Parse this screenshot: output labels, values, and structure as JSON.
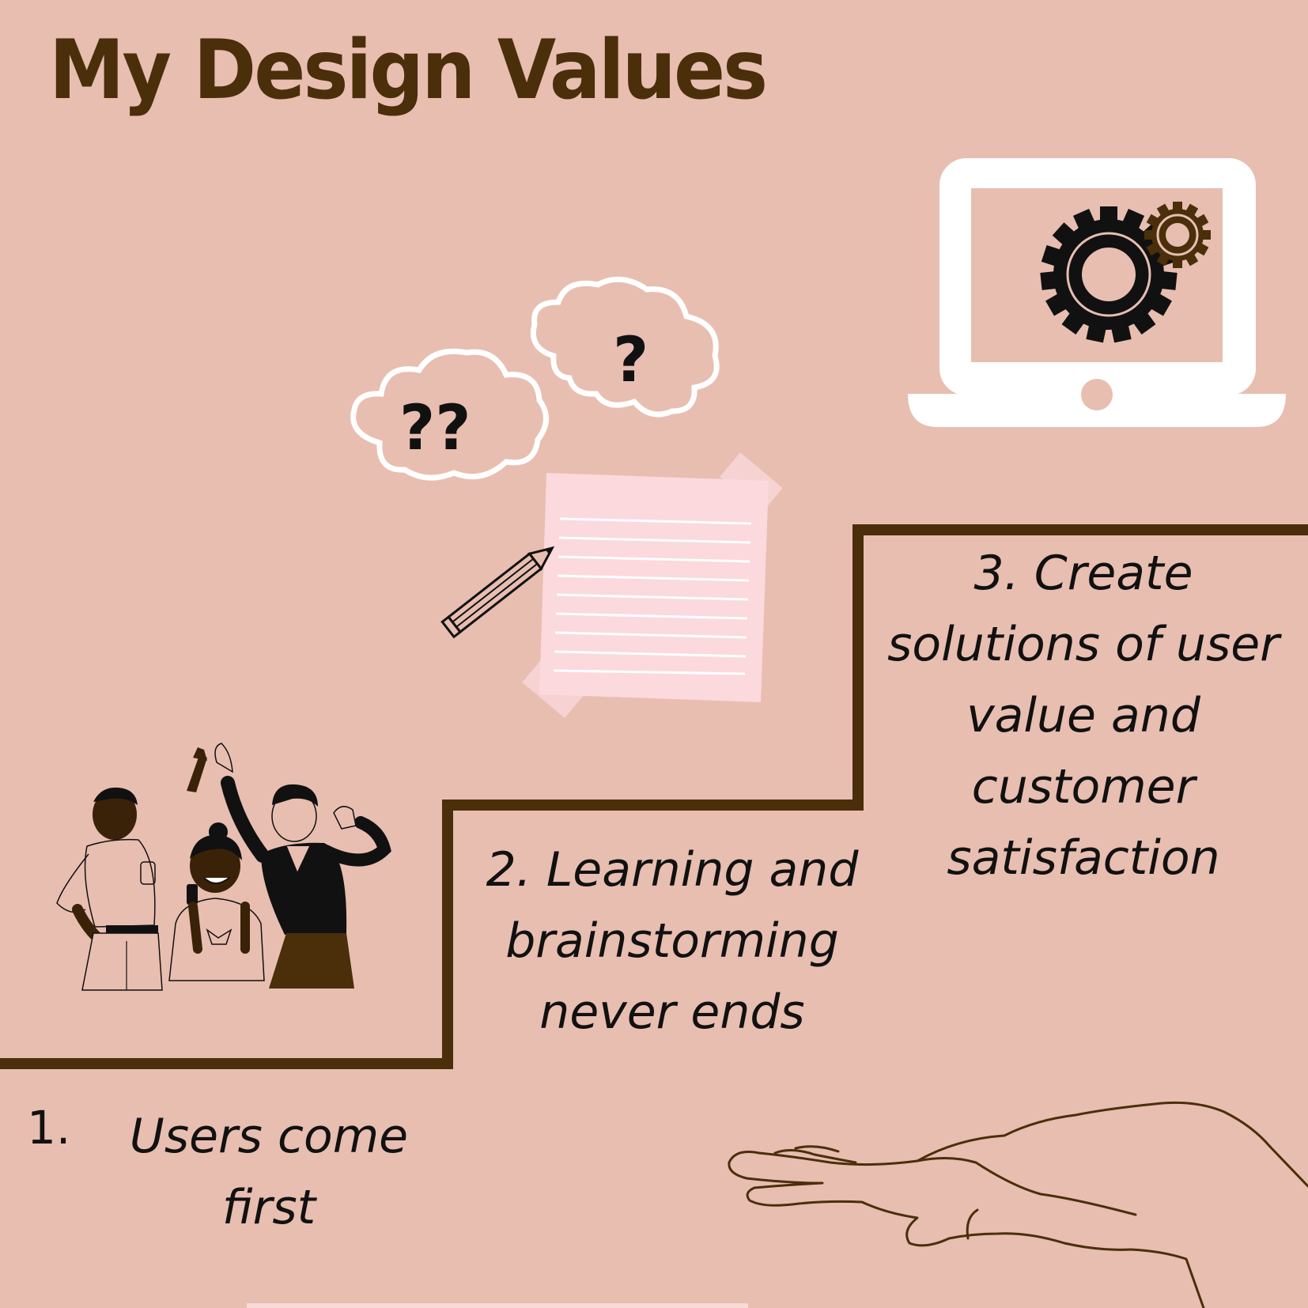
{
  "title": "My  Design Values",
  "values": [
    {
      "number": "1.",
      "text": "Users come first"
    },
    {
      "number": "2.",
      "text": "2. Learning and brainstorming never ends"
    },
    {
      "number": "3.",
      "text": "3. Create solutions of user value and customer satisfaction"
    }
  ],
  "colors": {
    "background": "#e8beb1",
    "accent_brown": "#4a2f0a",
    "text": "#111111",
    "white": "#ffffff",
    "paper_pink": "#fbd9dd"
  },
  "icons": [
    "people-celebrating-illustration",
    "thought-cloud-icon",
    "question-mark-icon",
    "notepad-icon",
    "pencil-icon",
    "laptop-icon",
    "gear-icon",
    "open-hand-icon"
  ],
  "question_marks": {
    "left_cloud": "??",
    "right_cloud": "?"
  }
}
